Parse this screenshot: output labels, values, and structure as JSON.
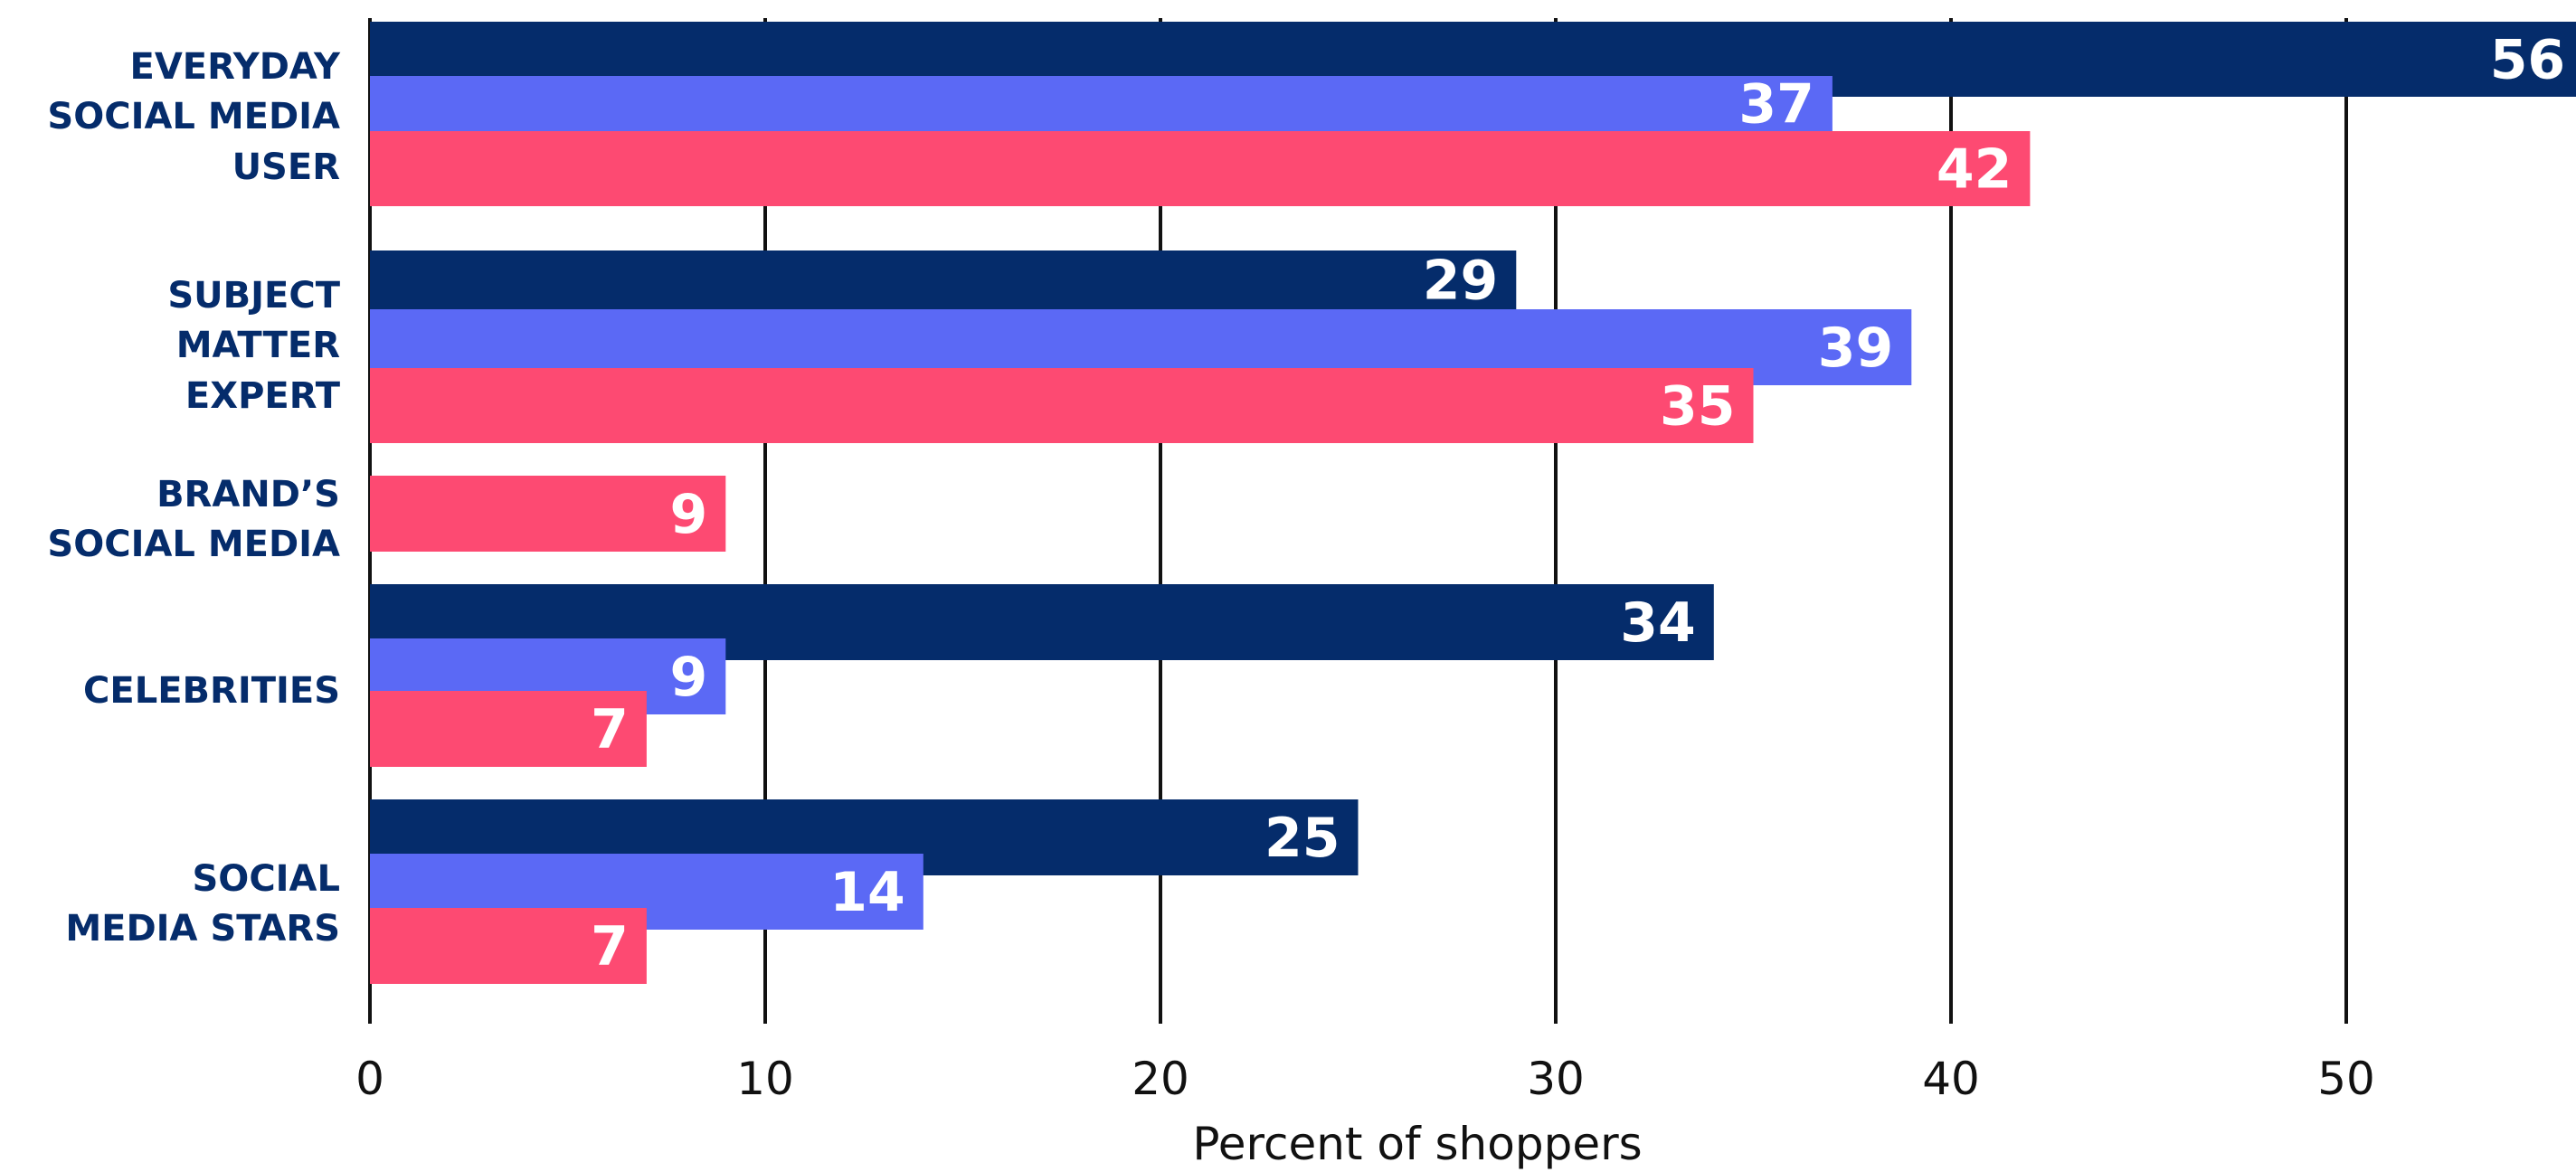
{
  "chart_data": {
    "type": "bar",
    "orientation": "horizontal",
    "title": "",
    "xlabel": "Percent of shoppers",
    "ylabel": "",
    "xlim": [
      0,
      56
    ],
    "xticks": [
      0,
      10,
      20,
      30,
      40,
      50
    ],
    "grid": "vertical",
    "legend": "none",
    "colors": [
      "#052c6b",
      "#5b69f5",
      "#fd4a72"
    ],
    "categories": [
      {
        "label": [
          "EVERYDAY",
          "SOCIAL MEDIA",
          "USER"
        ],
        "values": [
          56,
          37,
          42
        ]
      },
      {
        "label": [
          "SUBJECT",
          "MATTER",
          "EXPERT"
        ],
        "values": [
          29,
          39,
          35
        ]
      },
      {
        "label": [
          "BRAND’S",
          "SOCIAL MEDIA"
        ],
        "values": [
          null,
          null,
          9
        ]
      },
      {
        "label": [
          "CELEBRITIES"
        ],
        "values": [
          34,
          9,
          7
        ]
      },
      {
        "label": [
          "SOCIAL",
          "MEDIA STARS"
        ],
        "values": [
          25,
          14,
          7
        ]
      }
    ]
  }
}
